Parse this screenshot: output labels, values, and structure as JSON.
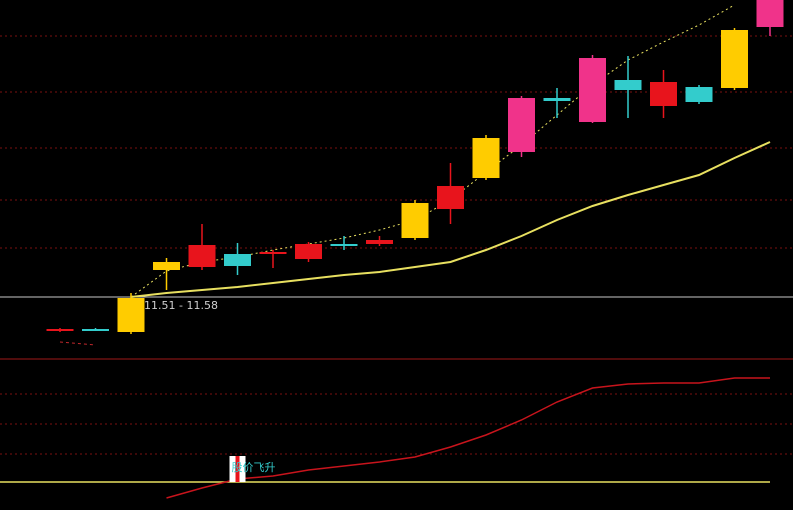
{
  "chart_data": [
    {
      "type": "candlestick",
      "categories": [
        null,
        null,
        null,
        null,
        null,
        null,
        null,
        null,
        null,
        null,
        null,
        null,
        null,
        null,
        null,
        null,
        null,
        null,
        null,
        null,
        null
      ],
      "open": [
        11.23,
        11.22,
        11.2,
        11.82,
        12.07,
        11.86,
        12.0,
        12.08,
        12.06,
        12.12,
        12.14,
        12.66,
        12.74,
        13.54,
        13.51,
        13.94,
        13.62,
        13.7,
        13.5,
        13.64,
        14.52
      ],
      "close": [
        11.21,
        11.23,
        11.54,
        11.9,
        11.85,
        11.98,
        11.98,
        11.93,
        12.08,
        12.08,
        12.49,
        12.43,
        13.14,
        13.0,
        13.54,
        13.3,
        13.72,
        13.46,
        13.65,
        14.22,
        14.25
      ],
      "high": [
        11.24,
        11.24,
        11.59,
        11.94,
        12.28,
        12.09,
        12.02,
        12.1,
        12.16,
        12.16,
        12.52,
        12.89,
        13.17,
        13.56,
        13.64,
        13.97,
        13.96,
        13.82,
        13.67,
        14.24,
        14.52
      ],
      "low": [
        11.2,
        11.21,
        11.18,
        11.62,
        11.82,
        11.77,
        11.84,
        11.9,
        12.02,
        12.06,
        12.12,
        12.28,
        12.72,
        12.95,
        13.34,
        13.29,
        13.34,
        13.34,
        13.48,
        13.62,
        14.16
      ],
      "colors": [
        "#e8141c",
        "#33cccc",
        "#ffcc00",
        "#ffcc00",
        "#e8141c",
        "#33cccc",
        "#e8141c",
        "#e8141c",
        "#33cccc",
        "#e8141c",
        "#ffcc00",
        "#e8141c",
        "#ffcc00",
        "#f0338a",
        "#33cccc",
        "#f0338a",
        "#33cccc",
        "#e8141c",
        "#33cccc",
        "#ffcc00",
        "#f0338a"
      ],
      "lines": [
        {
          "color": "#e8e060",
          "style": "solid",
          "values": [
            null,
            null,
            11.55,
            11.59,
            11.62,
            11.65,
            11.69,
            11.73,
            11.77,
            11.8,
            11.85,
            11.9,
            12.02,
            12.16,
            12.32,
            12.46,
            12.57,
            12.67,
            12.77,
            12.94,
            13.1
          ]
        },
        {
          "color": "#e8e060",
          "style": "dotted",
          "values": [
            null,
            null,
            11.55,
            11.81,
            11.9,
            11.95,
            12.02,
            12.08,
            12.14,
            12.22,
            12.32,
            12.52,
            12.8,
            13.07,
            13.37,
            13.67,
            13.92,
            14.1,
            14.27,
            14.47,
            null
          ]
        },
        {
          "color": "#c0282c",
          "style": "dashed",
          "values": [
            11.1,
            11.07,
            null,
            null,
            null,
            null,
            null,
            null,
            null,
            null,
            null,
            null,
            null,
            null,
            null,
            null,
            null,
            null,
            null,
            null,
            null
          ]
        }
      ],
      "reference_line": 11.55,
      "annotation": "11.51 - 11.58",
      "ylim": [
        10.97,
        14.52
      ]
    },
    {
      "type": "line",
      "series": [
        {
          "color": "#c8141c",
          "values": [
            null,
            null,
            null,
            12,
            22,
            31,
            34,
            40,
            44,
            48,
            53,
            63,
            75,
            90,
            108,
            122,
            126,
            127,
            127,
            132,
            132
          ]
        }
      ],
      "level": 28,
      "level_color": "#e8e060",
      "signal_index": 5,
      "signal_top": 54,
      "annotation": "股价飞升",
      "ylim": [
        0,
        150
      ]
    }
  ]
}
